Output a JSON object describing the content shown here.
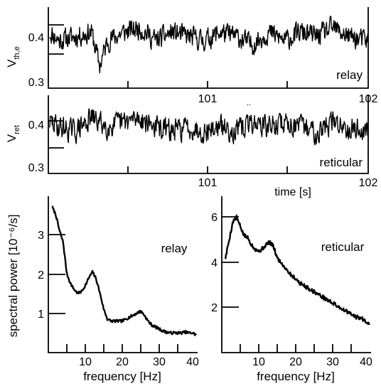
{
  "chart_data": [
    {
      "type": "line",
      "panel": "relay-trace",
      "ylabel": "V",
      "ylabel_sub": "th,e",
      "label": "relay",
      "x_ticks": [
        "101",
        "102"
      ],
      "xlim": [
        100.04,
        102.02
      ],
      "y_ticks": [
        "0.4",
        "0.3"
      ],
      "y_tick_values": [
        0.4,
        0.3
      ],
      "ylim": [
        0.28,
        0.47
      ],
      "series": [
        {
          "x": [
            100.04,
            100.1,
            100.2,
            100.3,
            100.35,
            100.4,
            100.5,
            100.6,
            100.7,
            100.8,
            100.9,
            101.0,
            101.1,
            101.2,
            101.3,
            101.4,
            101.5,
            101.6,
            101.7,
            101.8,
            101.9,
            102.0
          ],
          "values": [
            0.41,
            0.39,
            0.4,
            0.41,
            0.33,
            0.39,
            0.41,
            0.42,
            0.39,
            0.41,
            0.4,
            0.39,
            0.41,
            0.4,
            0.38,
            0.41,
            0.39,
            0.41,
            0.4,
            0.42,
            0.4,
            0.39
          ]
        }
      ]
    },
    {
      "type": "line",
      "panel": "reticular-trace",
      "ylabel": "V",
      "ylabel_sub": "ret",
      "label": "reticular",
      "x_ticks": [
        "101",
        "102"
      ],
      "xlim": [
        100.04,
        102.02
      ],
      "xlabel": "time [s]",
      "y_ticks": [
        "0.4",
        "0.3"
      ],
      "y_tick_values": [
        0.4,
        0.3
      ],
      "ylim": [
        0.28,
        0.45
      ],
      "series": [
        {
          "x": [
            100.04,
            100.1,
            100.2,
            100.3,
            100.4,
            100.5,
            100.6,
            100.7,
            100.8,
            100.9,
            101.0,
            101.1,
            101.2,
            101.3,
            101.4,
            101.5,
            101.6,
            101.7,
            101.8,
            101.9,
            102.0
          ],
          "values": [
            0.39,
            0.38,
            0.37,
            0.4,
            0.38,
            0.39,
            0.4,
            0.38,
            0.37,
            0.38,
            0.37,
            0.38,
            0.37,
            0.39,
            0.38,
            0.39,
            0.38,
            0.37,
            0.39,
            0.38,
            0.37
          ]
        }
      ]
    },
    {
      "type": "line",
      "panel": "relay-spectrum",
      "ylabel": "spectral power [10⁻⁶/s]",
      "xlabel": "frequency [Hz]",
      "label": "relay",
      "x_ticks": [
        "10",
        "20",
        "30",
        "40"
      ],
      "x_tick_values": [
        10,
        20,
        30,
        40
      ],
      "xlim": [
        0,
        41
      ],
      "y_ticks": [
        "3",
        "2",
        "1"
      ],
      "y_tick_values": [
        3,
        2,
        1
      ],
      "ylim": [
        0,
        4
      ],
      "series": [
        {
          "x": [
            1,
            2,
            3,
            4,
            5,
            6,
            7,
            8,
            9,
            10,
            11,
            12,
            13,
            14,
            15,
            16,
            17,
            18,
            19,
            20,
            21,
            22,
            23,
            24,
            25,
            26,
            27,
            28,
            29,
            30,
            31,
            32,
            33,
            34,
            35,
            36,
            37,
            38,
            39,
            40
          ],
          "values": [
            3.7,
            3.5,
            3.1,
            2.8,
            2.0,
            1.75,
            1.6,
            1.5,
            1.55,
            1.7,
            1.9,
            2.05,
            1.85,
            1.5,
            1.1,
            0.85,
            0.8,
            0.8,
            0.8,
            0.8,
            0.85,
            0.9,
            0.95,
            1.0,
            1.05,
            0.95,
            0.8,
            0.7,
            0.65,
            0.6,
            0.55,
            0.52,
            0.5,
            0.5,
            0.5,
            0.5,
            0.52,
            0.5,
            0.5,
            0.45
          ]
        }
      ]
    },
    {
      "type": "line",
      "panel": "reticular-spectrum",
      "xlabel": "frequency [Hz]",
      "label": "reticular",
      "x_ticks": [
        "10",
        "20",
        "30",
        "40"
      ],
      "x_tick_values": [
        10,
        20,
        30,
        40
      ],
      "xlim": [
        0,
        41
      ],
      "y_ticks": [
        "6",
        "4",
        "2"
      ],
      "y_tick_values": [
        6,
        4,
        2
      ],
      "ylim": [
        0,
        7
      ],
      "series": [
        {
          "x": [
            1,
            2,
            3,
            4,
            5,
            6,
            7,
            8,
            9,
            10,
            11,
            12,
            13,
            14,
            15,
            16,
            17,
            18,
            19,
            20,
            21,
            22,
            23,
            24,
            25,
            26,
            27,
            28,
            29,
            30,
            31,
            32,
            33,
            34,
            35,
            36,
            37,
            38,
            39,
            40
          ],
          "values": [
            4.2,
            5.0,
            5.8,
            6.0,
            5.6,
            5.2,
            5.1,
            4.8,
            4.6,
            4.5,
            4.6,
            4.8,
            4.9,
            4.7,
            4.2,
            4.0,
            3.8,
            3.6,
            3.4,
            3.3,
            3.1,
            3.0,
            2.9,
            2.8,
            2.7,
            2.6,
            2.5,
            2.4,
            2.3,
            2.2,
            2.1,
            2.0,
            1.9,
            1.8,
            1.7,
            1.6,
            1.55,
            1.5,
            1.4,
            1.3
          ]
        }
      ]
    }
  ],
  "panel_divider_mark": ".."
}
